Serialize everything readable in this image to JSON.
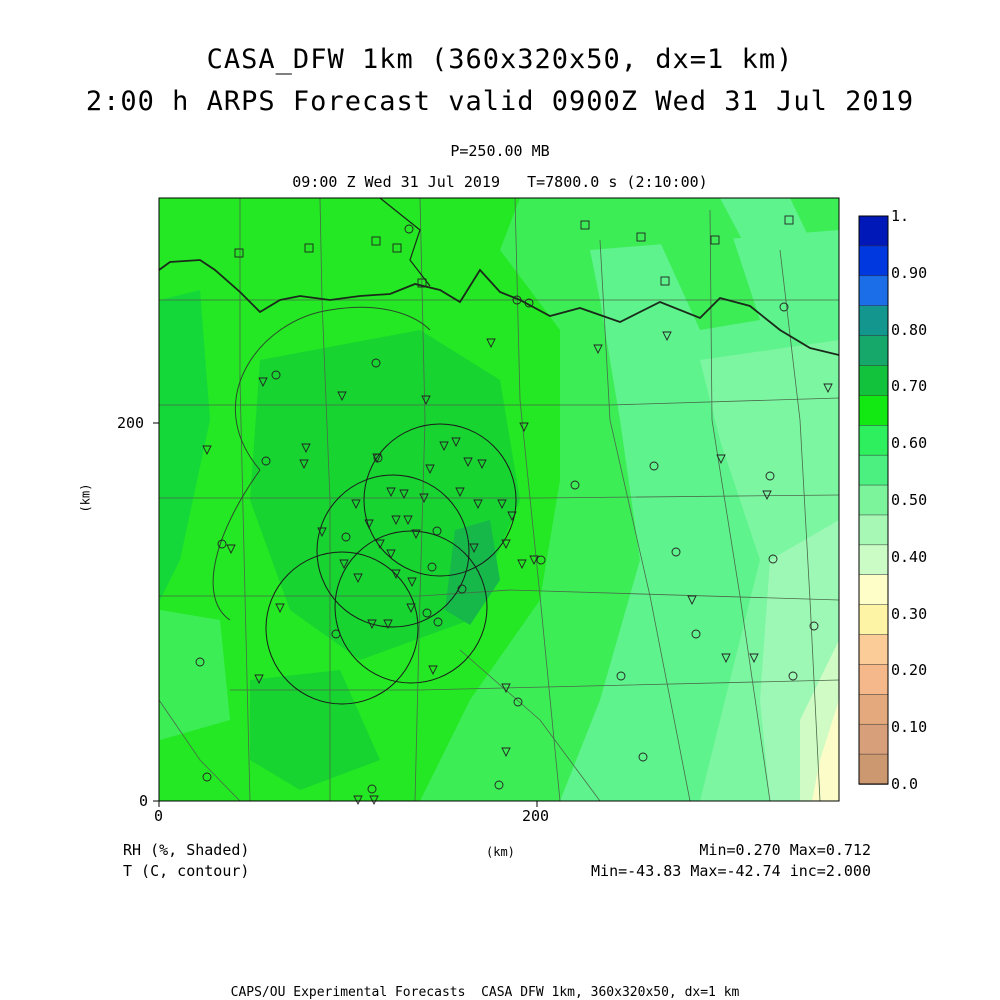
{
  "title_line1": "CASA_DFW 1km (360x320x50, dx=1 km)",
  "title_line2": "2:00 h ARPS Forecast valid 0900Z Wed 31 Jul 2019",
  "pressure_level": "P=250.00 MB",
  "time_line": "09:00 Z Wed 31 Jul 2019   T=7800.0 s (2:10:00)",
  "axes": {
    "y_unit": "(km)",
    "x_unit": "(km)",
    "x_ticks": [
      "0",
      "200"
    ],
    "y_ticks": [
      "0",
      "200"
    ]
  },
  "field_labels": {
    "rh": "RH (%, Shaded)",
    "t": "T (C, contour)"
  },
  "stats": {
    "rh": "Min=0.270 Max=0.712",
    "t": "Min=-43.83 Max=-42.74 inc=2.000"
  },
  "footer": "CAPS/OU Experimental Forecasts  CASA DFW 1km, 360x320x50, dx=1 km",
  "colorbar": {
    "labels": [
      "1.",
      "0.90",
      "0.80",
      "0.70",
      "0.60",
      "0.50",
      "0.40",
      "0.30",
      "0.20",
      "0.10",
      "0.0"
    ],
    "colors": [
      "#0018b8",
      "#0038e0",
      "#1c6ee8",
      "#12968e",
      "#16a86a",
      "#12c23c",
      "#12e812",
      "#2ef05e",
      "#4cf080",
      "#7cf49c",
      "#a6f8b4",
      "#ccfcc6",
      "#fefec8",
      "#fef4a6",
      "#fccc98",
      "#f4b88a",
      "#e4aa7e",
      "#d8a07a",
      "#cc9870"
    ]
  },
  "colors": {
    "field_base": "#23e823",
    "field_moist": "#14c839",
    "field_dry": "#5ef38c",
    "field_driest": "#9cf8b4",
    "outline": "#2a4a2a"
  }
}
